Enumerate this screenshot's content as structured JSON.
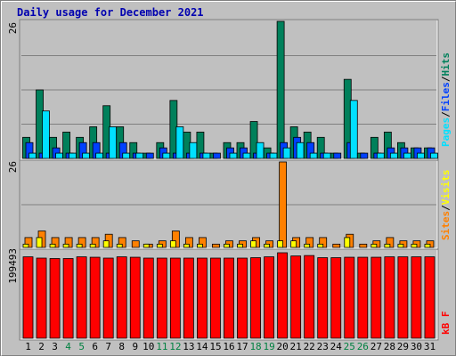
{
  "title": "Daily usage for December 2021",
  "colors": {
    "background": "#c0c0c0",
    "title": "#0000b0",
    "hits": "#00805b",
    "files": "#0040ff",
    "pages": "#00e0ff",
    "visits": "#ffff00",
    "sites": "#ff8000",
    "kbytes": "#ff0000",
    "weekend_day": "#008040",
    "weekday": "#000000"
  },
  "chart_data": [
    {
      "type": "bar",
      "panel": "hits-files-pages",
      "ymax_label": "26",
      "ylim": [
        0,
        26
      ],
      "legend": [
        "Pages",
        "/",
        "Files",
        "/",
        "Hits"
      ],
      "categories": [
        "1",
        "2",
        "3",
        "4",
        "5",
        "6",
        "7",
        "8",
        "9",
        "10",
        "11",
        "12",
        "13",
        "14",
        "15",
        "16",
        "17",
        "18",
        "19",
        "20",
        "21",
        "22",
        "23",
        "24",
        "25",
        "26",
        "27",
        "28",
        "29",
        "30",
        "31"
      ],
      "series": [
        {
          "name": "Hits",
          "values": [
            4,
            13,
            4,
            5,
            4,
            6,
            10,
            6,
            3,
            1,
            3,
            11,
            5,
            5,
            1,
            3,
            3,
            7,
            2,
            26,
            6,
            5,
            4,
            1,
            15,
            1,
            4,
            5,
            3,
            2,
            2
          ]
        },
        {
          "name": "Files",
          "values": [
            3,
            1,
            2,
            1,
            3,
            3,
            1,
            3,
            1,
            1,
            2,
            1,
            1,
            1,
            1,
            2,
            2,
            1,
            1,
            3,
            4,
            3,
            1,
            1,
            3,
            1,
            1,
            2,
            2,
            2,
            2
          ]
        },
        {
          "name": "Pages",
          "values": [
            1,
            9,
            1,
            1,
            1,
            1,
            6,
            1,
            1,
            0,
            1,
            6,
            3,
            1,
            0,
            1,
            1,
            3,
            1,
            2,
            3,
            1,
            1,
            0,
            11,
            0,
            1,
            1,
            1,
            1,
            1
          ]
        }
      ]
    },
    {
      "type": "bar",
      "panel": "sites-visits",
      "ymax_label": "26",
      "ylim": [
        0,
        26
      ],
      "legend": [
        "Sites",
        "/",
        "Visits"
      ],
      "categories": [
        "1",
        "2",
        "3",
        "4",
        "5",
        "6",
        "7",
        "8",
        "9",
        "10",
        "11",
        "12",
        "13",
        "14",
        "15",
        "16",
        "17",
        "18",
        "19",
        "20",
        "21",
        "22",
        "23",
        "24",
        "25",
        "26",
        "27",
        "28",
        "29",
        "30",
        "31"
      ],
      "series": [
        {
          "name": "Sites",
          "values": [
            3,
            5,
            3,
            3,
            3,
            3,
            4,
            3,
            2,
            1,
            2,
            5,
            3,
            3,
            1,
            2,
            2,
            3,
            2,
            26,
            3,
            3,
            3,
            1,
            4,
            1,
            2,
            3,
            2,
            2,
            2
          ]
        },
        {
          "name": "Visits",
          "values": [
            1,
            3,
            1,
            1,
            1,
            1,
            2,
            1,
            0,
            1,
            1,
            2,
            1,
            1,
            0,
            1,
            1,
            2,
            1,
            2,
            2,
            1,
            1,
            0,
            3,
            0,
            1,
            1,
            1,
            1,
            1
          ]
        }
      ]
    },
    {
      "type": "bar",
      "panel": "kbytes",
      "ymax_label": "199493",
      "ylim": [
        0,
        199493
      ],
      "legend": [
        "KBytes"
      ],
      "legend_text": "kB F",
      "categories": [
        "1",
        "2",
        "3",
        "4",
        "5",
        "6",
        "7",
        "8",
        "9",
        "10",
        "11",
        "12",
        "13",
        "14",
        "15",
        "16",
        "17",
        "18",
        "19",
        "20",
        "21",
        "22",
        "23",
        "24",
        "25",
        "26",
        "27",
        "28",
        "29",
        "30",
        "31"
      ],
      "series": [
        {
          "name": "KBytes",
          "values": [
            190000,
            187000,
            186000,
            186000,
            190000,
            189000,
            187000,
            190000,
            189000,
            187000,
            187000,
            187000,
            187000,
            187000,
            187000,
            187000,
            187000,
            188000,
            190000,
            199493,
            192000,
            193000,
            188000,
            188000,
            189000,
            189000,
            189000,
            190000,
            190000,
            190000,
            190000
          ]
        }
      ]
    }
  ],
  "day_labels": [
    "1",
    "2",
    "3",
    "4",
    "5",
    "6",
    "7",
    "8",
    "9",
    "10",
    "11",
    "12",
    "13",
    "14",
    "15",
    "16",
    "17",
    "18",
    "19",
    "20",
    "21",
    "22",
    "23",
    "24",
    "25",
    "26",
    "27",
    "28",
    "29",
    "30",
    "31"
  ],
  "weekend_days": [
    4,
    5,
    11,
    12,
    18,
    19,
    25,
    26
  ]
}
